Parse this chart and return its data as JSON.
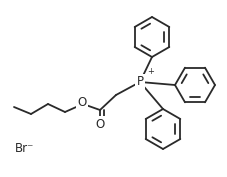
{
  "background_color": "#ffffff",
  "line_color": "#2a2a2a",
  "line_width": 1.3,
  "font_size_label": 8.5,
  "br_label": "Br⁻",
  "p_label": "P",
  "o_label": "O",
  "o2_label": "O",
  "plus_label": "+"
}
